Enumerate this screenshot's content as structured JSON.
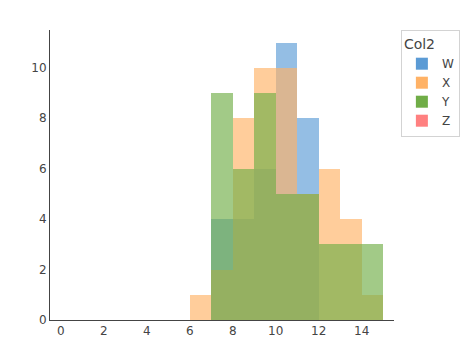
{
  "chart_data": {
    "type": "histogram",
    "legend_title": "Col2",
    "bins": [
      6,
      7,
      8,
      9,
      10,
      11,
      12,
      13,
      14,
      15
    ],
    "series": [
      {
        "name": "W",
        "color": "#5B9BD5",
        "values": [
          0,
          4,
          4,
          6,
          11,
          8,
          0,
          0,
          0
        ]
      },
      {
        "name": "X",
        "color": "#FFB266",
        "values": [
          1,
          2,
          8,
          10,
          10,
          5,
          6,
          4,
          1
        ]
      },
      {
        "name": "Y",
        "color": "#70AD47",
        "values": [
          0,
          9,
          6,
          9,
          5,
          5,
          3,
          3,
          3
        ]
      },
      {
        "name": "Z",
        "color": "#FF8080",
        "values": [
          0,
          0,
          0,
          0,
          0,
          0,
          0,
          0,
          0
        ]
      }
    ],
    "xlim": [
      -0.5,
      15.5
    ],
    "ylim": [
      0,
      11.5
    ],
    "xticks": [
      0,
      2,
      4,
      6,
      8,
      10,
      12,
      14
    ],
    "yticks": [
      0,
      2,
      4,
      6,
      8,
      10
    ],
    "grid": false,
    "legend": "upper right"
  }
}
